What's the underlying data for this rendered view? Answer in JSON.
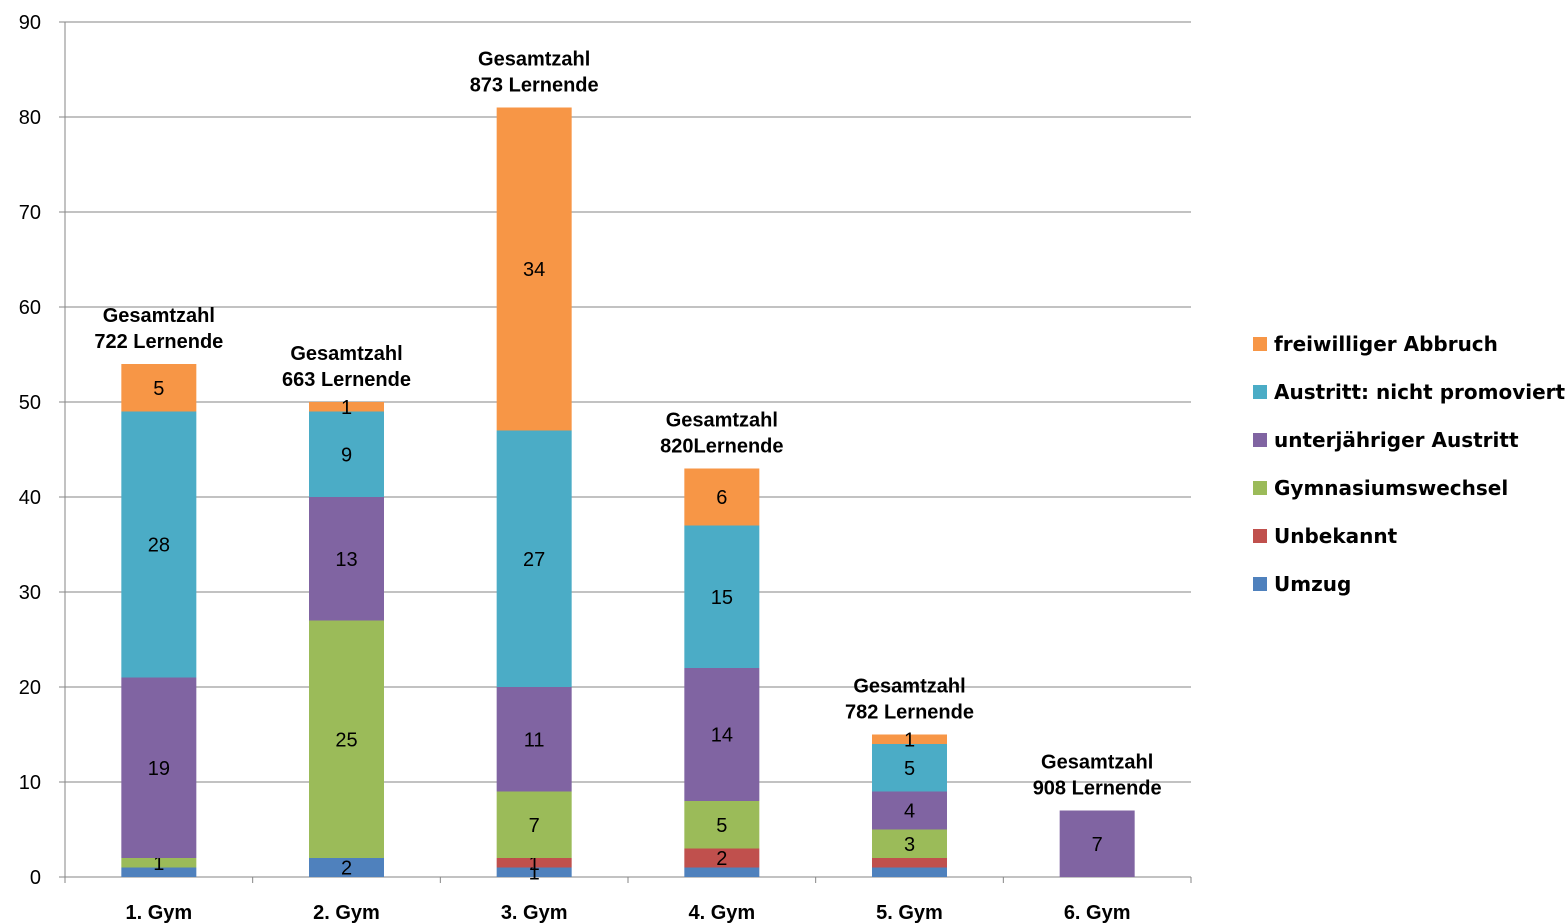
{
  "chart_data": {
    "type": "bar",
    "stacked": true,
    "categories": [
      "1. Gym",
      "2. Gym",
      "3. Gym",
      "4. Gym",
      "5. Gym",
      "6. Gym"
    ],
    "series": [
      {
        "name": "Umzug",
        "color": "#4F81BD",
        "values": [
          1,
          2,
          1,
          1,
          1,
          0
        ],
        "labels": [
          "",
          "2",
          "1",
          "",
          "",
          ""
        ]
      },
      {
        "name": "Unbekannt",
        "color": "#C0504D",
        "values": [
          0,
          0,
          1,
          2,
          1,
          0
        ],
        "labels": [
          "",
          "",
          "1",
          "2",
          "",
          ""
        ]
      },
      {
        "name": "Gymnasiumswechsel",
        "color": "#9BBB59",
        "values": [
          1,
          25,
          7,
          5,
          3,
          0
        ],
        "labels": [
          "1",
          "25",
          "7",
          "5",
          "3",
          ""
        ]
      },
      {
        "name": "unterjähriger Austritt",
        "color": "#8064A2",
        "values": [
          19,
          13,
          11,
          14,
          4,
          7
        ],
        "labels": [
          "19",
          "13",
          "11",
          "14",
          "4",
          "7"
        ]
      },
      {
        "name": "Austritt: nicht promoviert",
        "color": "#4BACC6",
        "values": [
          28,
          9,
          27,
          15,
          5,
          0
        ],
        "labels": [
          "28",
          "9",
          "27",
          "15",
          "5",
          ""
        ]
      },
      {
        "name": "freiwilliger Abbruch",
        "color": "#F79646",
        "values": [
          5,
          1,
          34,
          6,
          1,
          0
        ],
        "labels": [
          "5",
          "1",
          "34",
          "6",
          "1",
          ""
        ]
      }
    ],
    "annotations": [
      {
        "line1": "Gesamtzahl",
        "line2": "722 Lernende"
      },
      {
        "line1": "Gesamtzahl",
        "line2": "663 Lernende"
      },
      {
        "line1": "Gesamtzahl",
        "line2": "873 Lernende"
      },
      {
        "line1": "Gesamtzahl",
        "line2": "820Lernende"
      },
      {
        "line1": "Gesamtzahl",
        "line2": "782 Lernende"
      },
      {
        "line1": "Gesamtzahl",
        "line2": "908 Lernende"
      }
    ],
    "ylim": [
      0,
      90
    ],
    "yticks": [
      0,
      10,
      20,
      30,
      40,
      50,
      60,
      70,
      80,
      90
    ],
    "grid": true,
    "legend_position": "right",
    "legend_order": [
      "freiwilliger Abbruch",
      "Austritt: nicht promoviert",
      "unterjähriger Austritt",
      "Gymnasiumswechsel",
      "Unbekannt",
      "Umzug"
    ]
  }
}
